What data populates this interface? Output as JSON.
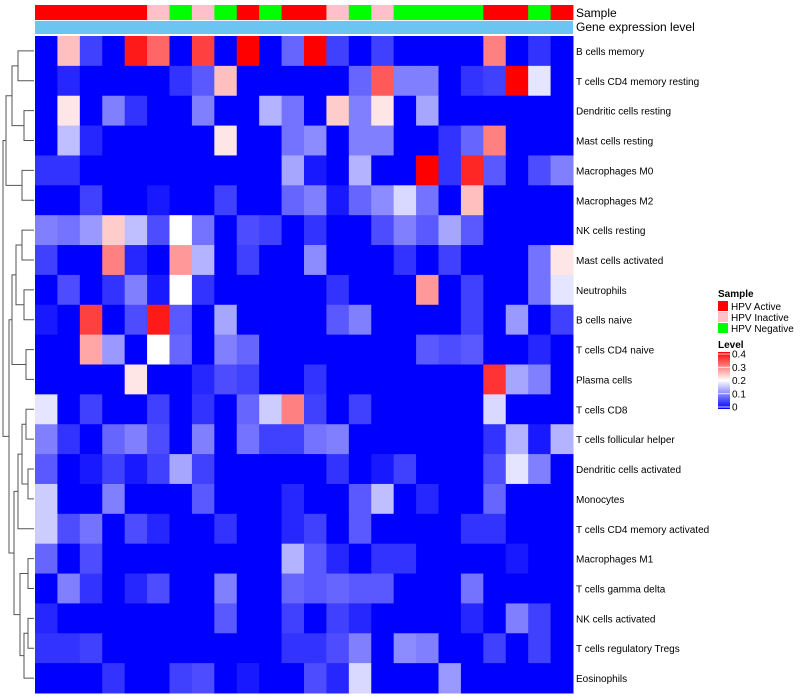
{
  "chart_data": {
    "type": "heatmap",
    "title": "",
    "annotation_tracks": [
      "Sample",
      "Gene expression level"
    ],
    "rows": [
      "B cells memory",
      "T cells CD4 memory resting",
      "Dendritic cells resting",
      "Mast cells resting",
      "Macrophages M0",
      "Macrophages M2",
      "NK cells resting",
      "Mast cells activated",
      "Neutrophils",
      "B cells naive",
      "T cells CD4 naive",
      "Plasma cells",
      "T cells CD8",
      "T cells follicular helper",
      "Dendritic cells activated",
      "Monocytes",
      "T cells CD4 memory activated",
      "Macrophages M1",
      "T cells gamma delta",
      "NK cells activated",
      "T cells regulatory  Tregs",
      "Eosinophils"
    ],
    "sample_groups": [
      "HPV Active",
      "HPV Active",
      "HPV Active",
      "HPV Active",
      "HPV Active",
      "HPV Inactive",
      "HPV Negative",
      "HPV Inactive",
      "HPV Negative",
      "HPV Active",
      "HPV Negative",
      "HPV Active",
      "HPV Active",
      "HPV Inactive",
      "HPV Negative",
      "HPV Inactive",
      "HPV Negative",
      "HPV Negative",
      "HPV Negative",
      "HPV Negative",
      "HPV Active",
      "HPV Active",
      "HPV Negative",
      "HPV Active"
    ],
    "expression_track_color": "#6cc5f0",
    "values": [
      [
        0.0,
        0.25,
        0.05,
        0.0,
        0.38,
        0.32,
        0.0,
        0.35,
        0.0,
        0.4,
        0.0,
        0.08,
        0.4,
        0.05,
        0.0,
        0.05,
        0.0,
        0.0,
        0.0,
        0.0,
        0.3,
        0.0,
        0.04,
        0.0
      ],
      [
        0.0,
        0.03,
        0.0,
        0.0,
        0.0,
        0.0,
        0.04,
        0.07,
        0.25,
        0.0,
        0.0,
        0.0,
        0.0,
        0.0,
        0.08,
        0.33,
        0.1,
        0.1,
        0.0,
        0.04,
        0.05,
        0.4,
        0.18,
        0.0
      ],
      [
        0.0,
        0.22,
        0.0,
        0.1,
        0.04,
        0.0,
        0.0,
        0.1,
        0.0,
        0.0,
        0.14,
        0.09,
        0.0,
        0.24,
        0.1,
        0.22,
        0.0,
        0.13,
        0.0,
        0.0,
        0.0,
        0.0,
        0.0,
        0.0
      ],
      [
        0.0,
        0.15,
        0.03,
        0.0,
        0.0,
        0.0,
        0.0,
        0.0,
        0.22,
        0.0,
        0.0,
        0.09,
        0.11,
        0.0,
        0.1,
        0.1,
        0.0,
        0.0,
        0.04,
        0.08,
        0.3,
        0.0,
        0.0,
        0.0
      ],
      [
        0.04,
        0.04,
        0.0,
        0.0,
        0.0,
        0.0,
        0.0,
        0.0,
        0.0,
        0.0,
        0.0,
        0.13,
        0.02,
        0.0,
        0.14,
        0.0,
        0.0,
        0.4,
        0.04,
        0.37,
        0.07,
        0.0,
        0.06,
        0.1
      ],
      [
        0.0,
        0.0,
        0.05,
        0.0,
        0.0,
        0.02,
        0.0,
        0.0,
        0.05,
        0.0,
        0.0,
        0.08,
        0.1,
        0.02,
        0.08,
        0.11,
        0.17,
        0.09,
        0.0,
        0.25,
        0.0,
        0.0,
        0.0,
        0.0
      ],
      [
        0.1,
        0.09,
        0.12,
        0.24,
        0.15,
        0.06,
        0.2,
        0.09,
        0.0,
        0.06,
        0.05,
        0.0,
        0.04,
        0.0,
        0.0,
        0.06,
        0.1,
        0.07,
        0.13,
        0.07,
        0.0,
        0.0,
        0.0,
        0.0
      ],
      [
        0.05,
        0.0,
        0.0,
        0.3,
        0.03,
        0.0,
        0.28,
        0.14,
        0.0,
        0.05,
        0.0,
        0.0,
        0.11,
        0.0,
        0.0,
        0.0,
        0.04,
        0.0,
        0.05,
        0.0,
        0.0,
        0.0,
        0.09,
        0.22
      ],
      [
        0.0,
        0.06,
        0.0,
        0.04,
        0.1,
        0.02,
        0.2,
        0.04,
        0.0,
        0.0,
        0.0,
        0.0,
        0.0,
        0.04,
        0.0,
        0.0,
        0.0,
        0.28,
        0.0,
        0.05,
        0.0,
        0.0,
        0.09,
        0.18
      ],
      [
        0.02,
        0.0,
        0.35,
        0.0,
        0.06,
        0.38,
        0.07,
        0.0,
        0.13,
        0.0,
        0.0,
        0.0,
        0.0,
        0.07,
        0.1,
        0.0,
        0.0,
        0.0,
        0.0,
        0.05,
        0.0,
        0.12,
        0.0,
        0.05
      ],
      [
        0.0,
        0.0,
        0.27,
        0.12,
        0.0,
        0.2,
        0.08,
        0.0,
        0.1,
        0.08,
        0.0,
        0.0,
        0.0,
        0.0,
        0.0,
        0.0,
        0.0,
        0.07,
        0.06,
        0.07,
        0.0,
        0.0,
        0.03,
        0.0
      ],
      [
        0.0,
        0.0,
        0.0,
        0.0,
        0.22,
        0.0,
        0.0,
        0.03,
        0.06,
        0.05,
        0.0,
        0.0,
        0.04,
        0.0,
        0.0,
        0.0,
        0.0,
        0.0,
        0.0,
        0.0,
        0.36,
        0.13,
        0.1,
        0.0
      ],
      [
        0.18,
        0.0,
        0.05,
        0.0,
        0.0,
        0.05,
        0.0,
        0.04,
        0.0,
        0.08,
        0.16,
        0.3,
        0.05,
        0.0,
        0.05,
        0.0,
        0.0,
        0.0,
        0.0,
        0.0,
        0.17,
        0.0,
        0.0,
        0.0
      ],
      [
        0.1,
        0.04,
        0.0,
        0.08,
        0.1,
        0.06,
        0.0,
        0.1,
        0.0,
        0.09,
        0.05,
        0.05,
        0.09,
        0.1,
        0.0,
        0.0,
        0.0,
        0.0,
        0.0,
        0.0,
        0.04,
        0.14,
        0.02,
        0.14
      ],
      [
        0.07,
        0.0,
        0.02,
        0.05,
        0.02,
        0.05,
        0.13,
        0.05,
        0.0,
        0.0,
        0.0,
        0.0,
        0.0,
        0.04,
        0.0,
        0.02,
        0.05,
        0.0,
        0.0,
        0.0,
        0.06,
        0.18,
        0.1,
        0.0
      ],
      [
        0.16,
        0.0,
        0.0,
        0.1,
        0.0,
        0.0,
        0.0,
        0.07,
        0.0,
        0.0,
        0.0,
        0.03,
        0.0,
        0.0,
        0.07,
        0.15,
        0.0,
        0.03,
        0.0,
        0.0,
        0.08,
        0.0,
        0.0,
        0.0
      ],
      [
        0.16,
        0.06,
        0.09,
        0.0,
        0.06,
        0.03,
        0.0,
        0.0,
        0.04,
        0.0,
        0.0,
        0.03,
        0.05,
        0.0,
        0.07,
        0.0,
        0.0,
        0.0,
        0.0,
        0.04,
        0.04,
        0.0,
        0.0,
        0.0
      ],
      [
        0.08,
        0.0,
        0.06,
        0.0,
        0.0,
        0.0,
        0.0,
        0.0,
        0.0,
        0.0,
        0.0,
        0.14,
        0.07,
        0.03,
        0.0,
        0.04,
        0.04,
        0.0,
        0.0,
        0.0,
        0.0,
        0.02,
        0.0,
        0.0
      ],
      [
        0.0,
        0.1,
        0.04,
        0.0,
        0.03,
        0.06,
        0.0,
        0.0,
        0.1,
        0.0,
        0.0,
        0.08,
        0.07,
        0.08,
        0.07,
        0.07,
        0.0,
        0.0,
        0.0,
        0.09,
        0.0,
        0.0,
        0.0,
        0.0
      ],
      [
        0.03,
        0.0,
        0.0,
        0.0,
        0.0,
        0.0,
        0.0,
        0.0,
        0.07,
        0.0,
        0.0,
        0.05,
        0.0,
        0.05,
        0.03,
        0.0,
        0.0,
        0.0,
        0.0,
        0.03,
        0.0,
        0.1,
        0.05,
        0.0
      ],
      [
        0.04,
        0.04,
        0.05,
        0.0,
        0.0,
        0.0,
        0.0,
        0.0,
        0.0,
        0.0,
        0.0,
        0.04,
        0.04,
        0.06,
        0.1,
        0.0,
        0.11,
        0.1,
        0.0,
        0.0,
        0.05,
        0.0,
        0.05,
        0.0
      ],
      [
        0.0,
        0.0,
        0.0,
        0.04,
        0.0,
        0.0,
        0.05,
        0.06,
        0.0,
        0.02,
        0.0,
        0.0,
        0.06,
        0.03,
        0.17,
        0.0,
        0.0,
        0.0,
        0.12,
        0.0,
        0.0,
        0.0,
        0.0,
        0.0
      ]
    ],
    "color_scale": {
      "min": 0,
      "max": 0.4,
      "colors": [
        "#0000ff",
        "#ffffff",
        "#ff0000"
      ]
    },
    "legend": {
      "sample_title": "Sample",
      "sample_items": [
        {
          "label": "HPV Active",
          "color": "#ff0000"
        },
        {
          "label": "HPV Inactive",
          "color": "#ffc0cb"
        },
        {
          "label": "HPV Negative",
          "color": "#00ff00"
        }
      ],
      "level_title": "Level",
      "level_ticks": [
        "0.4",
        "0.3",
        "0.2",
        "0.1",
        "0"
      ]
    }
  }
}
